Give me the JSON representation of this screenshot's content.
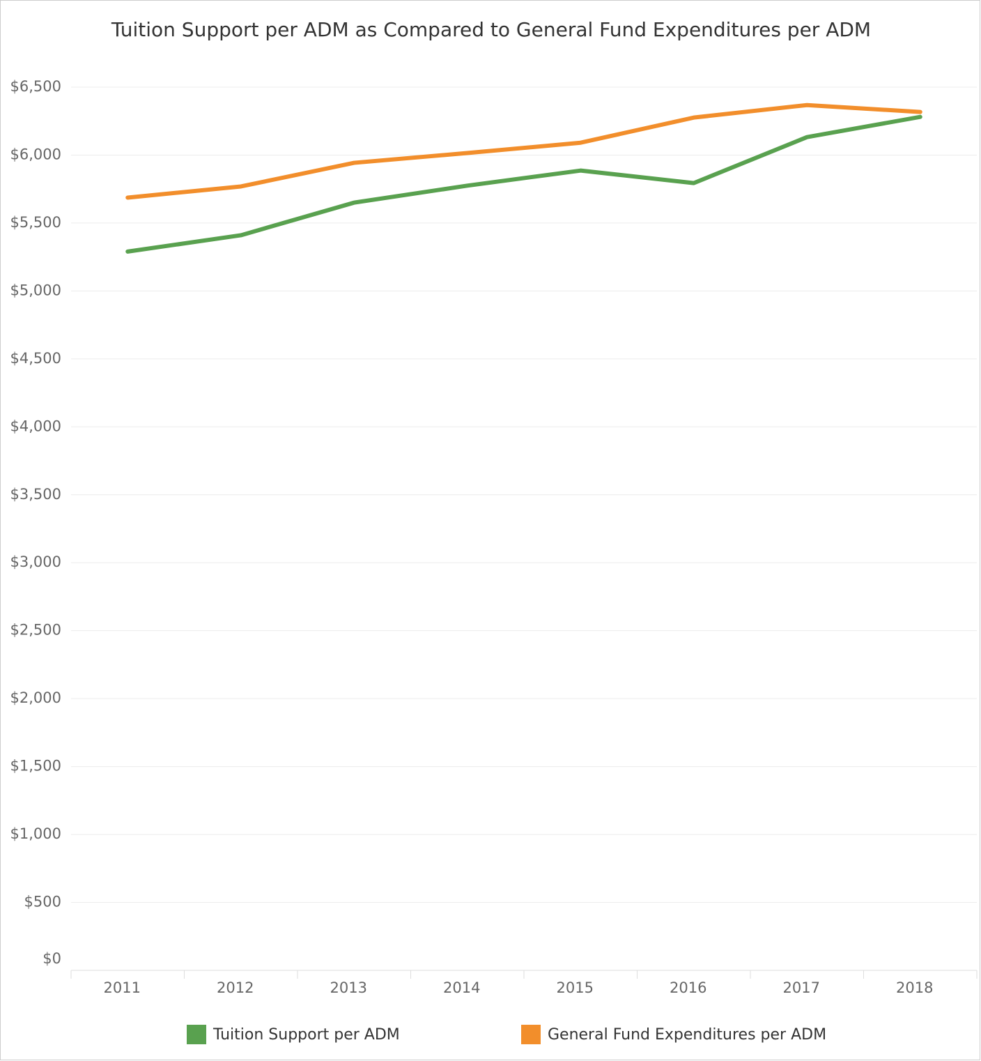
{
  "chart_data": {
    "type": "line",
    "title": "Tuition Support per ADM as Compared to General Fund Expenditures per ADM",
    "categories": [
      "2011",
      "2012",
      "2013",
      "2014",
      "2015",
      "2016",
      "2017",
      "2018"
    ],
    "series": [
      {
        "name": "Tuition Support per ADM",
        "color": "#59a14f",
        "values": [
          5290,
          5410,
          5650,
          5775,
          5886,
          5794,
          6132,
          6281
        ]
      },
      {
        "name": "General Fund Expenditures per ADM",
        "color": "#f28e2b",
        "values": [
          5687,
          5769,
          5943,
          6015,
          6091,
          6276,
          6368,
          6317
        ]
      }
    ],
    "ylim": [
      0,
      6700
    ],
    "yticks": [
      {
        "value": 0,
        "label": "$0"
      },
      {
        "value": 500,
        "label": "$500"
      },
      {
        "value": 1000,
        "label": "$1,000"
      },
      {
        "value": 1500,
        "label": "$1,500"
      },
      {
        "value": 2000,
        "label": "$2,000"
      },
      {
        "value": 2500,
        "label": "$2,500"
      },
      {
        "value": 3000,
        "label": "$3,000"
      },
      {
        "value": 3500,
        "label": "$3,500"
      },
      {
        "value": 4000,
        "label": "$4,000"
      },
      {
        "value": 4500,
        "label": "$4,500"
      },
      {
        "value": 5000,
        "label": "$5,000"
      },
      {
        "value": 5500,
        "label": "$5,500"
      },
      {
        "value": 6000,
        "label": "$6,000"
      },
      {
        "value": 6500,
        "label": "$6,500"
      }
    ],
    "grid": true,
    "legend": "bottom"
  }
}
